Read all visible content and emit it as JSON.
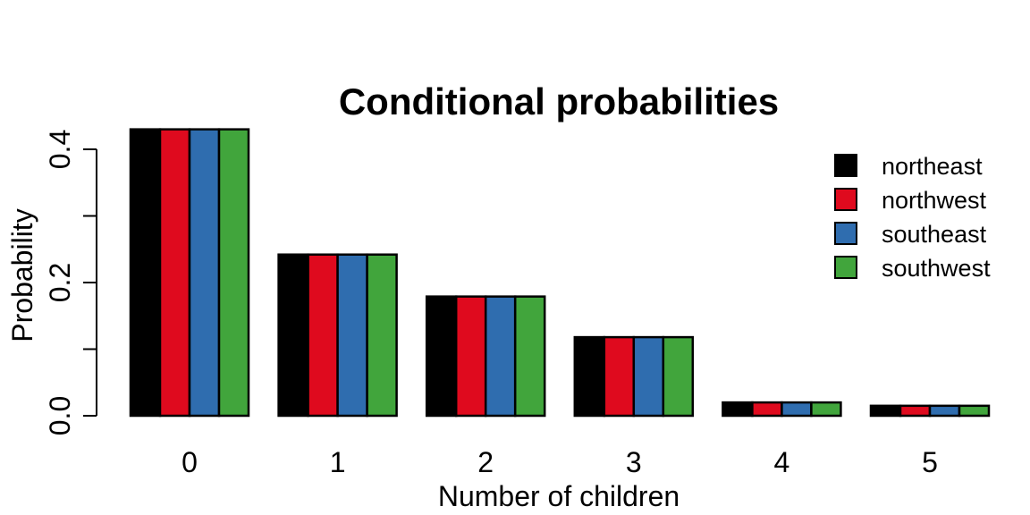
{
  "chart_data": {
    "type": "bar",
    "title": "Conditional probabilities",
    "xlabel": "Number of children",
    "ylabel": "Probability",
    "categories": [
      "0",
      "1",
      "2",
      "3",
      "4",
      "5"
    ],
    "series": [
      {
        "name": "northeast",
        "color": "#000000",
        "values": [
          0.43,
          0.242,
          0.179,
          0.118,
          0.02,
          0.015
        ]
      },
      {
        "name": "northwest",
        "color": "#DF0A1E",
        "values": [
          0.43,
          0.242,
          0.179,
          0.118,
          0.02,
          0.015
        ]
      },
      {
        "name": "southeast",
        "color": "#2F6DAF",
        "values": [
          0.43,
          0.242,
          0.179,
          0.118,
          0.02,
          0.015
        ]
      },
      {
        "name": "southwest",
        "color": "#41A53C",
        "values": [
          0.43,
          0.242,
          0.179,
          0.118,
          0.02,
          0.015
        ]
      }
    ],
    "ylim": [
      0,
      0.4
    ],
    "yticks": [
      0.0,
      0.1,
      0.2,
      0.3,
      0.4
    ],
    "ytick_labels": [
      "0.0",
      "",
      "0.2",
      "",
      "0.4"
    ],
    "legend": "top-right",
    "grid": false
  }
}
